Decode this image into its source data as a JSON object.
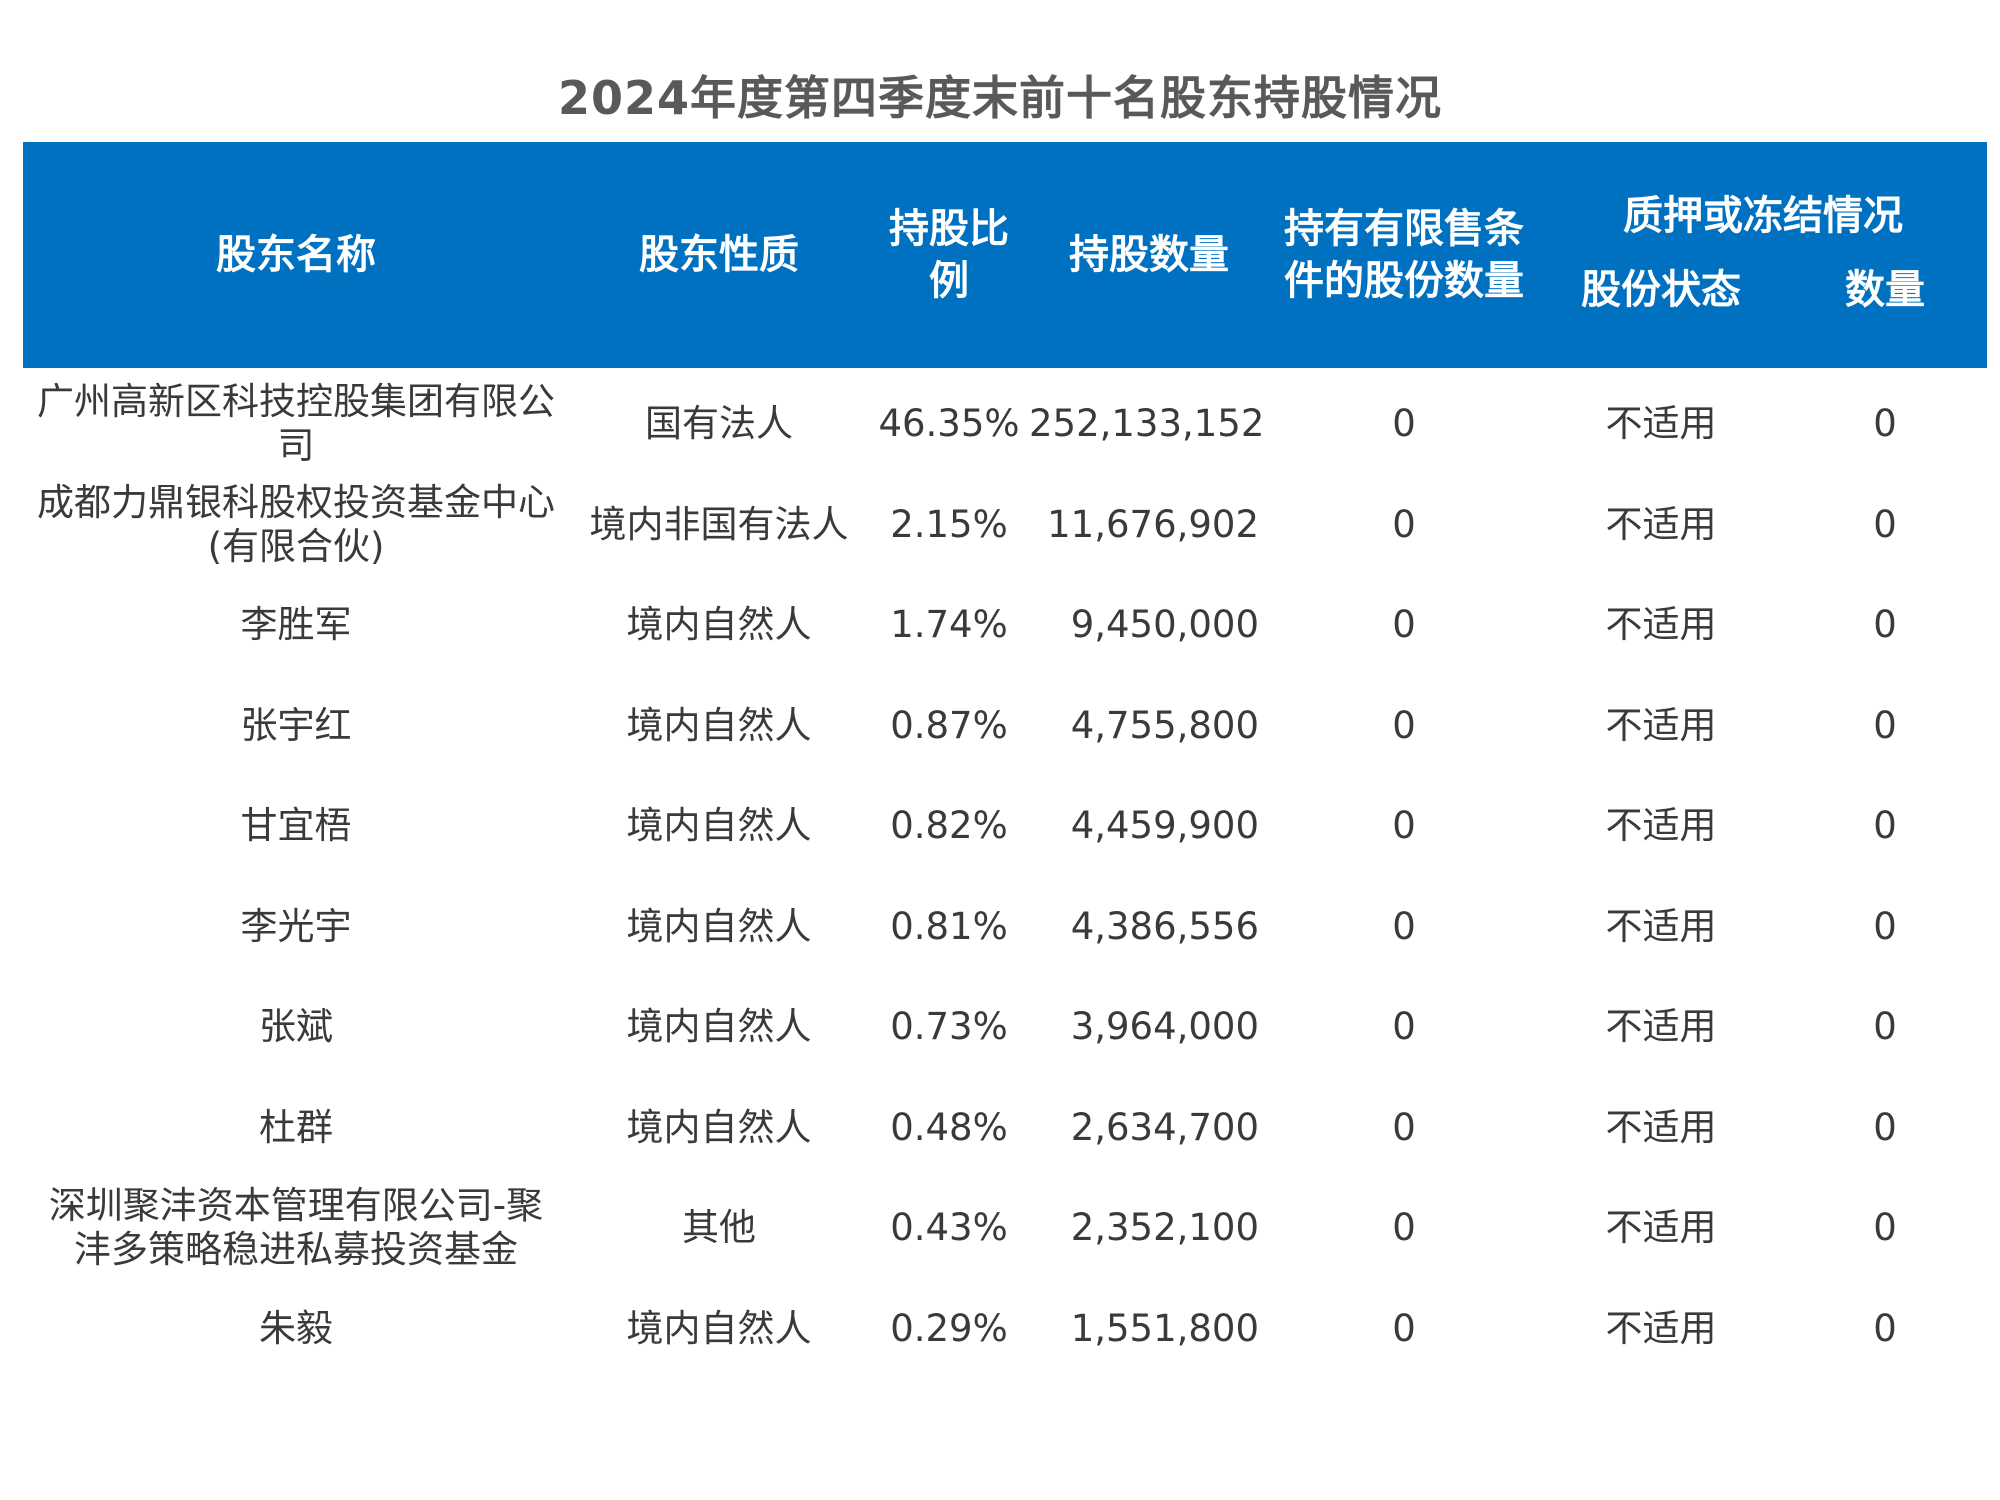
{
  "title": "2024年度第四季度末前十名股东持股情况",
  "colors": {
    "header_bg": "#0070c0",
    "header_text": "#ffffff",
    "title_text": "#595959",
    "body_text": "#3a3a3a"
  },
  "headers": {
    "name": "股东名称",
    "nature": "股东性质",
    "ratio": "持股比例",
    "shares": "持股数量",
    "restricted": "持有有限售条件的股份数量",
    "pledge_group": "质押或冻结情况",
    "pledge_status": "股份状态",
    "pledge_qty": "数量"
  },
  "rows": [
    {
      "name": "广州高新区科技控股集团有限公司",
      "nature": "国有法人",
      "ratio": "46.35%",
      "shares": "252,133,152",
      "restricted": "0",
      "status": "不适用",
      "qty": "0"
    },
    {
      "name": "成都力鼎银科股权投资基金中心(有限合伙)",
      "nature": "境内非国有法人",
      "ratio": "2.15%",
      "shares": "11,676,902",
      "restricted": "0",
      "status": "不适用",
      "qty": "0"
    },
    {
      "name": "李胜军",
      "nature": "境内自然人",
      "ratio": "1.74%",
      "shares": "9,450,000",
      "restricted": "0",
      "status": "不适用",
      "qty": "0"
    },
    {
      "name": "张宇红",
      "nature": "境内自然人",
      "ratio": "0.87%",
      "shares": "4,755,800",
      "restricted": "0",
      "status": "不适用",
      "qty": "0"
    },
    {
      "name": "甘宜梧",
      "nature": "境内自然人",
      "ratio": "0.82%",
      "shares": "4,459,900",
      "restricted": "0",
      "status": "不适用",
      "qty": "0"
    },
    {
      "name": "李光宇",
      "nature": "境内自然人",
      "ratio": "0.81%",
      "shares": "4,386,556",
      "restricted": "0",
      "status": "不适用",
      "qty": "0"
    },
    {
      "name": "张斌",
      "nature": "境内自然人",
      "ratio": "0.73%",
      "shares": "3,964,000",
      "restricted": "0",
      "status": "不适用",
      "qty": "0"
    },
    {
      "name": "杜群",
      "nature": "境内自然人",
      "ratio": "0.48%",
      "shares": "2,634,700",
      "restricted": "0",
      "status": "不适用",
      "qty": "0"
    },
    {
      "name": "深圳聚沣资本管理有限公司-聚沣多策略稳进私募投资基金",
      "nature": "其他",
      "ratio": "0.43%",
      "shares": "2,352,100",
      "restricted": "0",
      "status": "不适用",
      "qty": "0"
    },
    {
      "name": "朱毅",
      "nature": "境内自然人",
      "ratio": "0.29%",
      "shares": "1,551,800",
      "restricted": "0",
      "status": "不适用",
      "qty": "0"
    }
  ]
}
